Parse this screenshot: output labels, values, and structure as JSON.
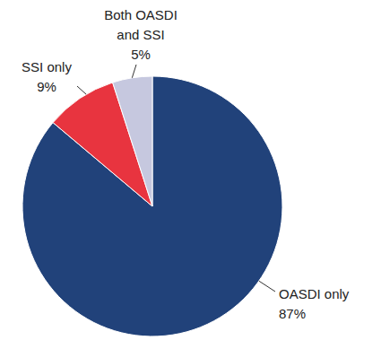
{
  "chart_data": {
    "type": "pie",
    "categories": [
      "OASDI only",
      "SSI only",
      "Both OASDI and SSI"
    ],
    "values": [
      87,
      9,
      5
    ],
    "value_labels": [
      "87%",
      "9%",
      "5%"
    ],
    "colors": [
      "#21427a",
      "#e8343f",
      "#c6c8df"
    ],
    "data_labels": true
  }
}
